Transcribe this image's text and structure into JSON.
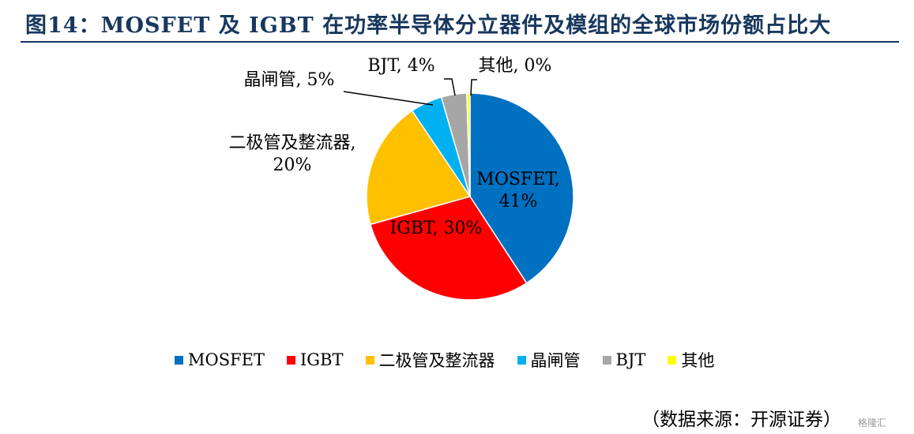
{
  "header": {
    "title": "图14：MOSFET 及 IGBT 在功率半导体分立器件及模组的全球市场份额占比大"
  },
  "chart_data": {
    "type": "pie",
    "title": "",
    "slices": [
      {
        "label": "MOSFET",
        "value": 41,
        "display": "MOSFET,\n41%",
        "color": "#0070c0"
      },
      {
        "label": "IGBT",
        "value": 30,
        "display": "IGBT, 30%",
        "color": "#ff0000"
      },
      {
        "label": "二极管及整流器",
        "value": 20,
        "display": "二极管及整流器,\n20%",
        "color": "#ffc000"
      },
      {
        "label": "晶闸管",
        "value": 5,
        "display": "晶闸管, 5%",
        "color": "#00b0f0"
      },
      {
        "label": "BJT",
        "value": 4,
        "display": "BJT, 4%",
        "color": "#a6a6a6"
      },
      {
        "label": "其他",
        "value": 0.5,
        "display": "其他, 0%",
        "color": "#ffff00"
      }
    ],
    "legend": "bottom"
  },
  "legend_items": [
    {
      "label": "MOSFET",
      "color": "#0070c0"
    },
    {
      "label": "IGBT",
      "color": "#ff0000"
    },
    {
      "label": "二极管及整流器",
      "color": "#ffc000"
    },
    {
      "label": "晶闸管",
      "color": "#00b0f0"
    },
    {
      "label": "BJT",
      "color": "#a6a6a6"
    },
    {
      "label": "其他",
      "color": "#ffff00"
    }
  ],
  "footer": {
    "source": "（数据来源：开源证券）",
    "watermark": "格隆汇"
  }
}
